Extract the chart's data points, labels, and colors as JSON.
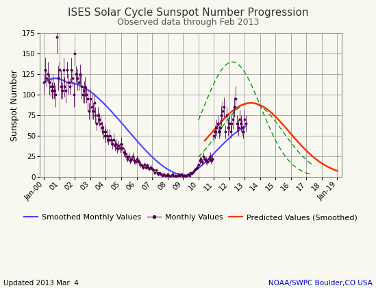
{
  "title": "ISES Solar Cycle Sunspot Number Progression",
  "subtitle": "Observed data through Feb 2013",
  "ylabel": "Sunspot Number",
  "ylim": [
    0,
    175
  ],
  "yticks": [
    0,
    25,
    50,
    75,
    100,
    125,
    150,
    175
  ],
  "background_color": "#f8f8f0",
  "plot_bg_color": "#f8f8f0",
  "grid_color": "#999999",
  "footer_left": "Updated 2013 Mar  4",
  "footer_right": "NOAA/SWPC Boulder,CO USA",
  "footer_color_left": "#000000",
  "footer_color_right": "#0000cc",
  "smoothed_color": "#4444ff",
  "monthly_color": "#550055",
  "predicted_color": "#ff3300",
  "green_color": "#009900",
  "title_fontsize": 11,
  "subtitle_fontsize": 9,
  "axis_label_fontsize": 9,
  "tick_fontsize": 7.5,
  "legend_fontsize": 8,
  "footer_fontsize": 7.5,
  "monthly_data": [
    [
      2000,
      1,
      115,
      15,
      10
    ],
    [
      2000,
      2,
      130,
      15,
      15
    ],
    [
      2000,
      3,
      120,
      10,
      10
    ],
    [
      2000,
      4,
      125,
      10,
      15
    ],
    [
      2000,
      5,
      115,
      15,
      10
    ],
    [
      2000,
      6,
      110,
      12,
      12
    ],
    [
      2000,
      7,
      105,
      10,
      10
    ],
    [
      2000,
      8,
      110,
      15,
      15
    ],
    [
      2000,
      9,
      105,
      10,
      10
    ],
    [
      2000,
      10,
      100,
      15,
      12
    ],
    [
      2000,
      11,
      170,
      20,
      5
    ],
    [
      2000,
      12,
      120,
      15,
      15
    ],
    [
      2001,
      1,
      130,
      15,
      10
    ],
    [
      2001,
      2,
      110,
      15,
      20
    ],
    [
      2001,
      3,
      105,
      10,
      10
    ],
    [
      2001,
      4,
      130,
      15,
      15
    ],
    [
      2001,
      5,
      110,
      12,
      12
    ],
    [
      2001,
      6,
      105,
      15,
      10
    ],
    [
      2001,
      7,
      130,
      10,
      10
    ],
    [
      2001,
      8,
      115,
      15,
      10
    ],
    [
      2001,
      9,
      110,
      10,
      10
    ],
    [
      2001,
      10,
      130,
      15,
      15
    ],
    [
      2001,
      11,
      120,
      10,
      10
    ],
    [
      2001,
      12,
      100,
      15,
      15
    ],
    [
      2002,
      1,
      150,
      15,
      5
    ],
    [
      2002,
      2,
      125,
      10,
      10
    ],
    [
      2002,
      3,
      120,
      15,
      12
    ],
    [
      2002,
      4,
      115,
      10,
      10
    ],
    [
      2002,
      5,
      125,
      12,
      12
    ],
    [
      2002,
      6,
      110,
      15,
      15
    ],
    [
      2002,
      7,
      100,
      10,
      10
    ],
    [
      2002,
      8,
      105,
      15,
      12
    ],
    [
      2002,
      9,
      110,
      12,
      12
    ],
    [
      2002,
      10,
      100,
      10,
      10
    ],
    [
      2002,
      11,
      95,
      15,
      10
    ],
    [
      2002,
      12,
      80,
      10,
      10
    ],
    [
      2003,
      1,
      95,
      12,
      12
    ],
    [
      2003,
      2,
      85,
      15,
      15
    ],
    [
      2003,
      3,
      80,
      10,
      10
    ],
    [
      2003,
      4,
      90,
      12,
      12
    ],
    [
      2003,
      5,
      75,
      10,
      10
    ],
    [
      2003,
      6,
      65,
      8,
      8
    ],
    [
      2003,
      7,
      75,
      10,
      10
    ],
    [
      2003,
      8,
      70,
      8,
      8
    ],
    [
      2003,
      9,
      65,
      10,
      10
    ],
    [
      2003,
      10,
      60,
      8,
      8
    ],
    [
      2003,
      11,
      55,
      8,
      8
    ],
    [
      2003,
      12,
      50,
      8,
      8
    ],
    [
      2004,
      1,
      55,
      8,
      8
    ],
    [
      2004,
      2,
      50,
      8,
      8
    ],
    [
      2004,
      3,
      45,
      6,
      6
    ],
    [
      2004,
      4,
      50,
      8,
      8
    ],
    [
      2004,
      5,
      45,
      6,
      6
    ],
    [
      2004,
      6,
      40,
      6,
      6
    ],
    [
      2004,
      7,
      45,
      8,
      8
    ],
    [
      2004,
      8,
      38,
      6,
      6
    ],
    [
      2004,
      9,
      40,
      6,
      6
    ],
    [
      2004,
      10,
      35,
      6,
      6
    ],
    [
      2004,
      11,
      38,
      6,
      6
    ],
    [
      2004,
      12,
      35,
      6,
      6
    ],
    [
      2005,
      1,
      40,
      8,
      8
    ],
    [
      2005,
      2,
      35,
      6,
      6
    ],
    [
      2005,
      3,
      30,
      5,
      5
    ],
    [
      2005,
      4,
      28,
      5,
      5
    ],
    [
      2005,
      5,
      25,
      5,
      5
    ],
    [
      2005,
      6,
      22,
      4,
      4
    ],
    [
      2005,
      7,
      25,
      5,
      5
    ],
    [
      2005,
      8,
      20,
      4,
      4
    ],
    [
      2005,
      9,
      22,
      4,
      4
    ],
    [
      2005,
      10,
      25,
      5,
      5
    ],
    [
      2005,
      11,
      20,
      4,
      4
    ],
    [
      2005,
      12,
      18,
      4,
      4
    ],
    [
      2006,
      1,
      22,
      4,
      4
    ],
    [
      2006,
      2,
      20,
      4,
      4
    ],
    [
      2006,
      3,
      18,
      4,
      4
    ],
    [
      2006,
      4,
      15,
      3,
      3
    ],
    [
      2006,
      5,
      14,
      3,
      3
    ],
    [
      2006,
      6,
      12,
      3,
      3
    ],
    [
      2006,
      7,
      15,
      3,
      3
    ],
    [
      2006,
      8,
      12,
      3,
      3
    ],
    [
      2006,
      9,
      14,
      3,
      3
    ],
    [
      2006,
      10,
      12,
      3,
      3
    ],
    [
      2006,
      11,
      10,
      2,
      2
    ],
    [
      2006,
      12,
      12,
      3,
      3
    ],
    [
      2007,
      1,
      10,
      2,
      2
    ],
    [
      2007,
      2,
      8,
      2,
      2
    ],
    [
      2007,
      3,
      5,
      1,
      1
    ],
    [
      2007,
      4,
      8,
      2,
      2
    ],
    [
      2007,
      5,
      5,
      1,
      1
    ],
    [
      2007,
      6,
      3,
      1,
      1
    ],
    [
      2007,
      7,
      5,
      1,
      1
    ],
    [
      2007,
      8,
      3,
      1,
      1
    ],
    [
      2007,
      9,
      2,
      1,
      1
    ],
    [
      2007,
      10,
      3,
      1,
      1
    ],
    [
      2007,
      11,
      2,
      1,
      1
    ],
    [
      2007,
      12,
      2,
      1,
      1
    ],
    [
      2008,
      1,
      3,
      1,
      1
    ],
    [
      2008,
      2,
      2,
      1,
      1
    ],
    [
      2008,
      3,
      1,
      1,
      1
    ],
    [
      2008,
      4,
      2,
      1,
      1
    ],
    [
      2008,
      5,
      3,
      1,
      1
    ],
    [
      2008,
      6,
      1,
      1,
      1
    ],
    [
      2008,
      7,
      2,
      1,
      1
    ],
    [
      2008,
      8,
      1,
      1,
      1
    ],
    [
      2008,
      9,
      2,
      1,
      1
    ],
    [
      2008,
      10,
      3,
      1,
      1
    ],
    [
      2008,
      11,
      2,
      1,
      1
    ],
    [
      2008,
      12,
      3,
      1,
      1
    ],
    [
      2009,
      1,
      1,
      1,
      1
    ],
    [
      2009,
      2,
      2,
      1,
      1
    ],
    [
      2009,
      3,
      1,
      1,
      1
    ],
    [
      2009,
      4,
      2,
      1,
      1
    ],
    [
      2009,
      5,
      3,
      1,
      1
    ],
    [
      2009,
      6,
      2,
      1,
      1
    ],
    [
      2009,
      7,
      5,
      1,
      1
    ],
    [
      2009,
      8,
      4,
      1,
      1
    ],
    [
      2009,
      9,
      6,
      2,
      2
    ],
    [
      2009,
      10,
      8,
      2,
      2
    ],
    [
      2009,
      11,
      10,
      2,
      2
    ],
    [
      2009,
      12,
      12,
      3,
      3
    ],
    [
      2010,
      1,
      15,
      3,
      3
    ],
    [
      2010,
      2,
      20,
      4,
      4
    ],
    [
      2010,
      3,
      22,
      4,
      4
    ],
    [
      2010,
      4,
      18,
      4,
      4
    ],
    [
      2010,
      5,
      25,
      5,
      5
    ],
    [
      2010,
      6,
      22,
      4,
      4
    ],
    [
      2010,
      7,
      20,
      4,
      4
    ],
    [
      2010,
      8,
      18,
      4,
      4
    ],
    [
      2010,
      9,
      22,
      4,
      4
    ],
    [
      2010,
      10,
      25,
      5,
      5
    ],
    [
      2010,
      11,
      20,
      4,
      4
    ],
    [
      2010,
      12,
      22,
      4,
      4
    ],
    [
      2011,
      1,
      50,
      8,
      8
    ],
    [
      2011,
      2,
      55,
      8,
      8
    ],
    [
      2011,
      3,
      60,
      10,
      10
    ],
    [
      2011,
      4,
      65,
      10,
      10
    ],
    [
      2011,
      5,
      55,
      8,
      8
    ],
    [
      2011,
      6,
      60,
      10,
      10
    ],
    [
      2011,
      7,
      75,
      12,
      12
    ],
    [
      2011,
      8,
      80,
      12,
      12
    ],
    [
      2011,
      9,
      85,
      12,
      12
    ],
    [
      2011,
      10,
      55,
      8,
      8
    ],
    [
      2011,
      11,
      75,
      10,
      10
    ],
    [
      2011,
      12,
      60,
      10,
      10
    ],
    [
      2012,
      1,
      65,
      10,
      10
    ],
    [
      2012,
      2,
      55,
      8,
      8
    ],
    [
      2012,
      3,
      65,
      10,
      10
    ],
    [
      2012,
      4,
      70,
      12,
      12
    ],
    [
      2012,
      5,
      85,
      12,
      12
    ],
    [
      2012,
      6,
      95,
      15,
      15
    ],
    [
      2012,
      7,
      65,
      10,
      10
    ],
    [
      2012,
      8,
      60,
      10,
      10
    ],
    [
      2012,
      9,
      70,
      12,
      12
    ],
    [
      2012,
      10,
      65,
      10,
      10
    ],
    [
      2012,
      11,
      60,
      10,
      10
    ],
    [
      2012,
      12,
      55,
      8,
      8
    ],
    [
      2013,
      1,
      70,
      12,
      12
    ],
    [
      2013,
      2,
      65,
      10,
      10
    ]
  ]
}
